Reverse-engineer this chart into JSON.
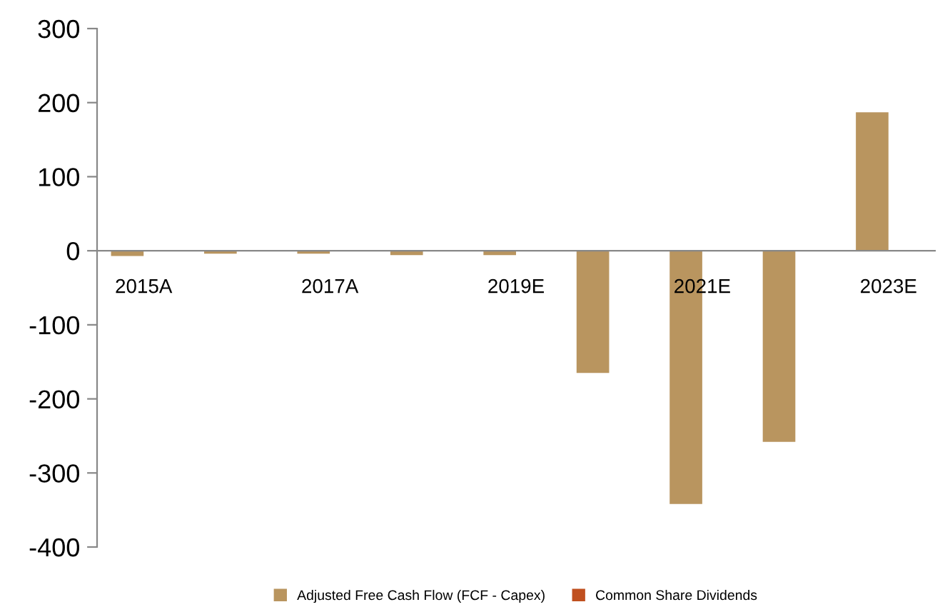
{
  "chart_data": {
    "type": "bar",
    "categories": [
      "2015A",
      null,
      "2017A",
      null,
      "2019E",
      null,
      "2021E",
      null,
      "2023E"
    ],
    "series": [
      {
        "name": "Adjusted Free Cash Flow (FCF - Capex)",
        "color": "#b9955f",
        "values": [
          -7,
          -4,
          -4,
          -6,
          -6,
          -165,
          -342,
          -258,
          187
        ]
      },
      {
        "name": "Common Share Dividends",
        "color": "#c0501f",
        "values": [
          0,
          0,
          0,
          0,
          0,
          0,
          0,
          0,
          0
        ]
      }
    ],
    "ylim": [
      -400,
      300
    ],
    "yticks": [
      -400,
      -300,
      -200,
      -100,
      0,
      100,
      200,
      300
    ],
    "grid": false,
    "legend": "bottom"
  }
}
